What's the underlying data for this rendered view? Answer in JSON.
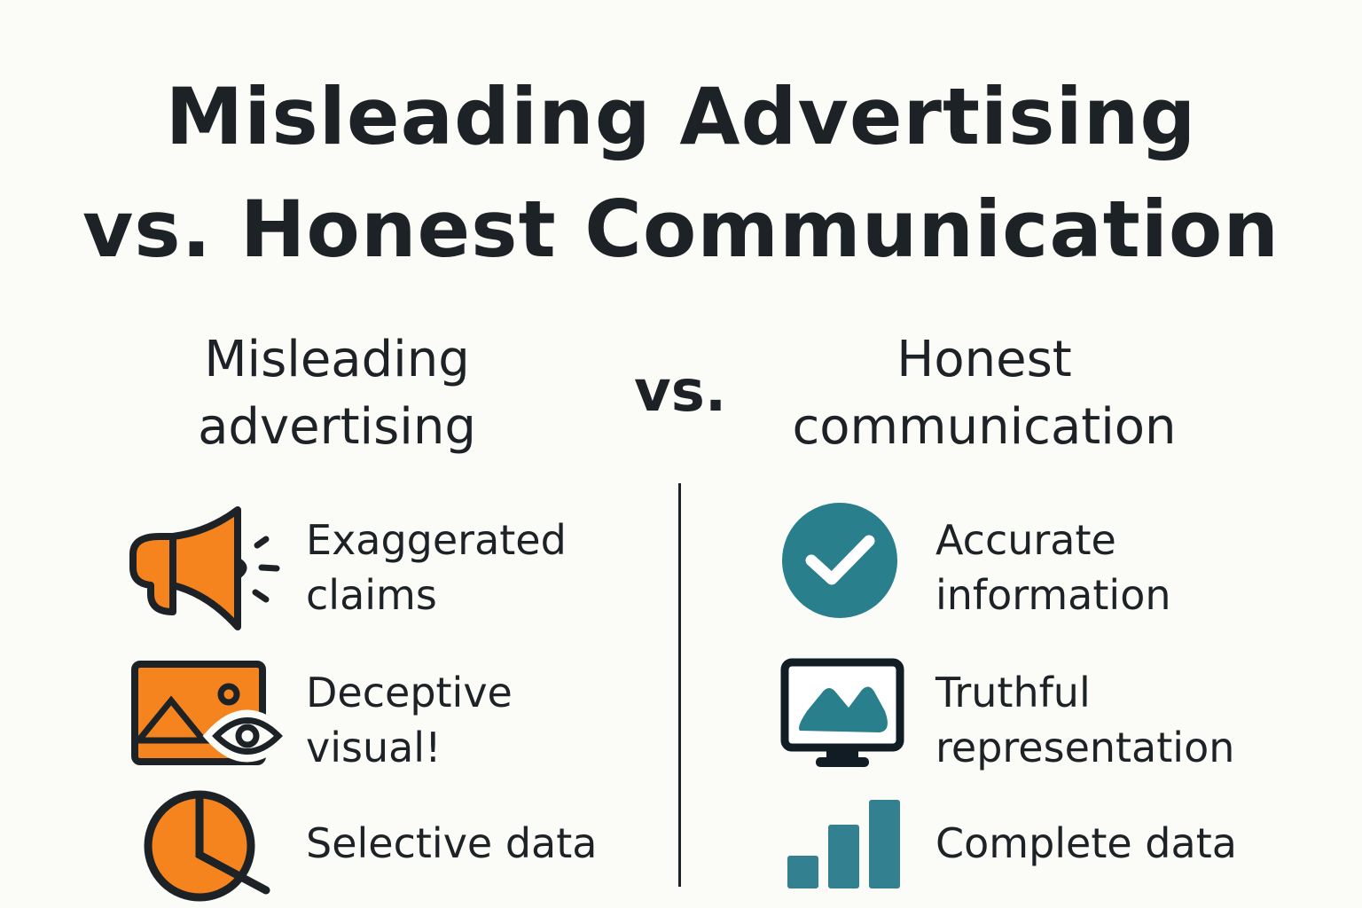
{
  "title": {
    "line1": "Misleading Advertising",
    "line2": "vs. Honest Communication"
  },
  "left": {
    "heading_line1": "Misleading",
    "heading_line2": "advertising",
    "items": [
      {
        "icon": "megaphone-icon",
        "line1": "Exaggerated",
        "line2": "claims"
      },
      {
        "icon": "image-eye-icon",
        "line1": "Deceptive",
        "line2": "visual!"
      },
      {
        "icon": "pie-magnifier-icon",
        "line1": "Selective data"
      }
    ]
  },
  "vs_label": "vs.",
  "right": {
    "heading_line1": "Honest",
    "heading_line2": "communication",
    "items": [
      {
        "icon": "check-circle-icon",
        "line1": "Accurate",
        "line2": "information"
      },
      {
        "icon": "monitor-image-icon",
        "line1": "Truthful",
        "line2": "representation"
      },
      {
        "icon": "bar-chart-icon",
        "line1": "Complete data"
      }
    ]
  },
  "colors": {
    "misleading": "#F5841F",
    "honest": "#2A7F8C",
    "ink": "#1C2226",
    "background": "#FBFBF7"
  }
}
